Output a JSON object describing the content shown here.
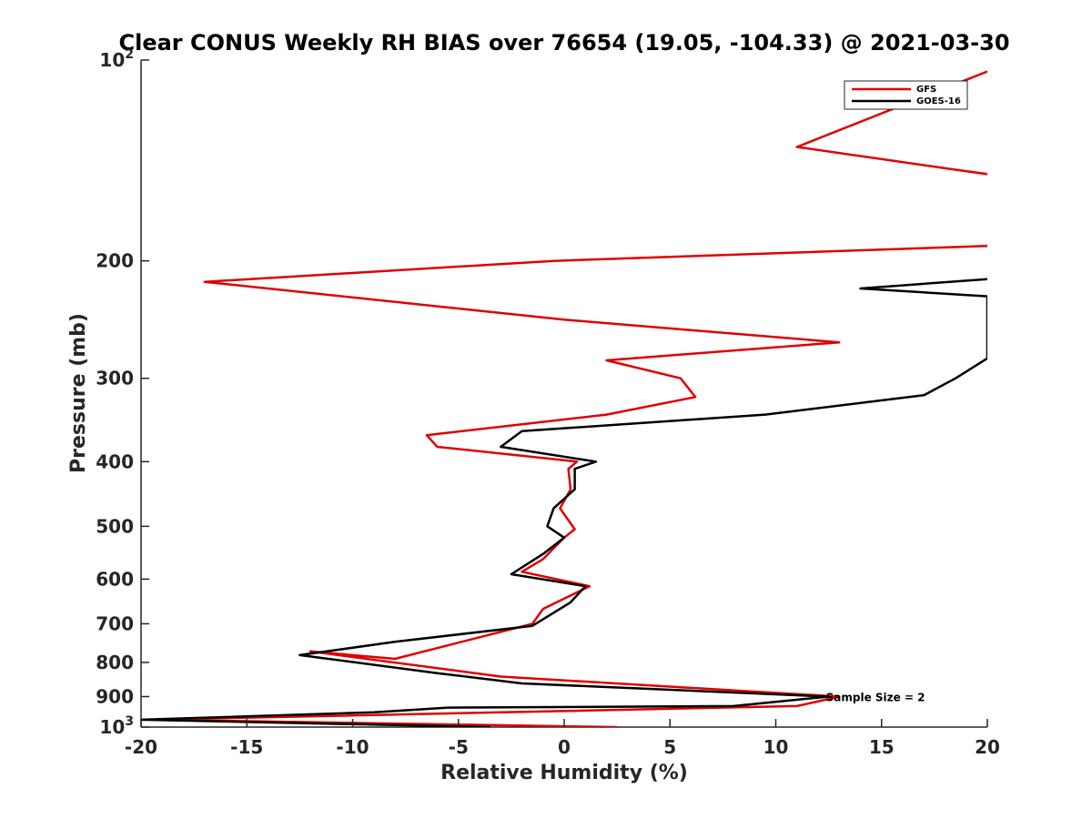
{
  "chart_data": {
    "type": "line",
    "title": "Clear CONUS Weekly RH BIAS over 76654 (19.05, -104.33) @ 2021-03-30",
    "xlabel": "Relative Humidity (%)",
    "ylabel": "Pressure (mb)",
    "xlim": [
      -20,
      20
    ],
    "ylim": [
      100,
      1000
    ],
    "y_scale": "log",
    "y_reversed": true,
    "x_ticks": [
      "-20",
      "-15",
      "-10",
      "-5",
      "0",
      "5",
      "10",
      "15",
      "20"
    ],
    "x_tick_values": [
      -20,
      -15,
      -10,
      -5,
      0,
      5,
      10,
      15,
      20
    ],
    "y_ticks": [
      {
        "value": 100,
        "base": "10",
        "exp": "2"
      },
      {
        "value": 200,
        "label": "200"
      },
      {
        "value": 300,
        "label": "300"
      },
      {
        "value": 400,
        "label": "400"
      },
      {
        "value": 500,
        "label": "500"
      },
      {
        "value": 600,
        "label": "600"
      },
      {
        "value": 700,
        "label": "700"
      },
      {
        "value": 800,
        "label": "800"
      },
      {
        "value": 900,
        "label": "900"
      },
      {
        "value": 1000,
        "base": "10",
        "exp": "3"
      }
    ],
    "legend_position": "top-right",
    "grid": false,
    "annotation": {
      "text": "Sample Size = 2",
      "x": 12.5,
      "y": 900
    },
    "series": [
      {
        "name": "GFS",
        "color": "#e00000",
        "points": [
          [
            20,
            104
          ],
          [
            11,
            135
          ],
          [
            18.5,
            146
          ],
          [
            20.5,
            149
          ],
          [
            20.5,
            180
          ],
          [
            20,
            190
          ],
          [
            -0.5,
            200
          ],
          [
            -17,
            215
          ],
          [
            0,
            245
          ],
          [
            13,
            265
          ],
          [
            2,
            282
          ],
          [
            5.5,
            300
          ],
          [
            6.2,
            320
          ],
          [
            2,
            340
          ],
          [
            -6.5,
            365
          ],
          [
            -6,
            380
          ],
          [
            0.6,
            400
          ],
          [
            0.2,
            410
          ],
          [
            0.3,
            440
          ],
          [
            -0.2,
            470
          ],
          [
            0.5,
            505
          ],
          [
            0,
            520
          ],
          [
            -1,
            560
          ],
          [
            -2,
            585
          ],
          [
            1.2,
            615
          ],
          [
            -1,
            665
          ],
          [
            -1.5,
            700
          ],
          [
            -8,
            790
          ],
          [
            -12,
            770
          ],
          [
            -3,
            840
          ],
          [
            13,
            900
          ],
          [
            11,
            930
          ],
          [
            -19.5,
            975
          ],
          [
            2.5,
            1000
          ]
        ]
      },
      {
        "name": "GOES-16",
        "color": "#000000",
        "points": [
          [
            20,
            213
          ],
          [
            14,
            220
          ],
          [
            20,
            226
          ],
          [
            20,
            235
          ],
          [
            20,
            280
          ],
          [
            18.5,
            300
          ],
          [
            17,
            318
          ],
          [
            9.5,
            340
          ],
          [
            -2,
            360
          ],
          [
            -3,
            380
          ],
          [
            1.5,
            400
          ],
          [
            0.5,
            410
          ],
          [
            0.5,
            440
          ],
          [
            -0.5,
            470
          ],
          [
            -0.8,
            500
          ],
          [
            0,
            520
          ],
          [
            -1,
            550
          ],
          [
            -2.5,
            590
          ],
          [
            1,
            615
          ],
          [
            0.3,
            650
          ],
          [
            -1.5,
            705
          ],
          [
            -8,
            745
          ],
          [
            -12.5,
            780
          ],
          [
            -6,
            830
          ],
          [
            -2,
            860
          ],
          [
            12.5,
            900
          ],
          [
            8,
            930
          ],
          [
            -5.5,
            935
          ],
          [
            -9,
            950
          ],
          [
            -20,
            975
          ],
          [
            -3.5,
            1000
          ]
        ]
      }
    ]
  }
}
